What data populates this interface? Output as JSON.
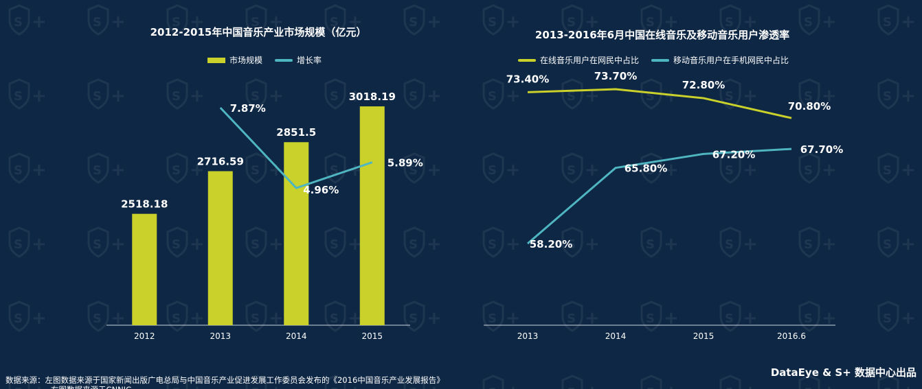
{
  "colors": {
    "background": "#0e2744",
    "bar": "#c9d12a",
    "online_line": "#c9d12a",
    "growth_line": "#4fb6c1",
    "mobile_line": "#4fb6c1",
    "axis": "#cfd6de"
  },
  "watermark": "S+",
  "chart_data": [
    {
      "type": "bar",
      "title": "2012-2015年中国音乐产业市场规模（亿元）",
      "categories": [
        "2012",
        "2013",
        "2014",
        "2015"
      ],
      "series": [
        {
          "name": "市场规模",
          "type": "bar",
          "values": [
            2518.18,
            2716.59,
            2851.5,
            3018.19
          ],
          "labels": [
            "2518.18",
            "2716.59",
            "2851.5",
            "3018.19"
          ]
        },
        {
          "name": "增长率",
          "type": "line",
          "values": [
            null,
            7.87,
            4.96,
            5.89
          ],
          "labels": [
            "",
            "7.87%",
            "4.96%",
            "5.89%"
          ]
        }
      ],
      "legend_position": "top-center",
      "grid": false
    },
    {
      "type": "line",
      "title": "2013-2016年6月中国在线音乐及移动音乐用户渗透率",
      "categories": [
        "2013",
        "2014",
        "2015",
        "2016.6"
      ],
      "series": [
        {
          "name": "在线音乐用户在网民中占比",
          "values": [
            73.4,
            73.7,
            72.8,
            70.8
          ],
          "labels": [
            "73.40%",
            "73.70%",
            "72.80%",
            "70.80%"
          ]
        },
        {
          "name": "移动音乐用户在手机网民中占比",
          "values": [
            58.2,
            65.8,
            67.2,
            67.7
          ],
          "labels": [
            "58.20%",
            "65.80%",
            "67.20%",
            "67.70%"
          ]
        }
      ],
      "legend_position": "top-center",
      "grid": false
    }
  ],
  "footer": {
    "source_line1": "数据来源：左图数据来源于国家新闻出版广电总局与中国音乐产业促进发展工作委员会发布的《2016中国音乐产业发展报告》",
    "source_line2": "右图数据来源于CNNIC",
    "brand": "DataEye & S+ 数据中心出品"
  }
}
